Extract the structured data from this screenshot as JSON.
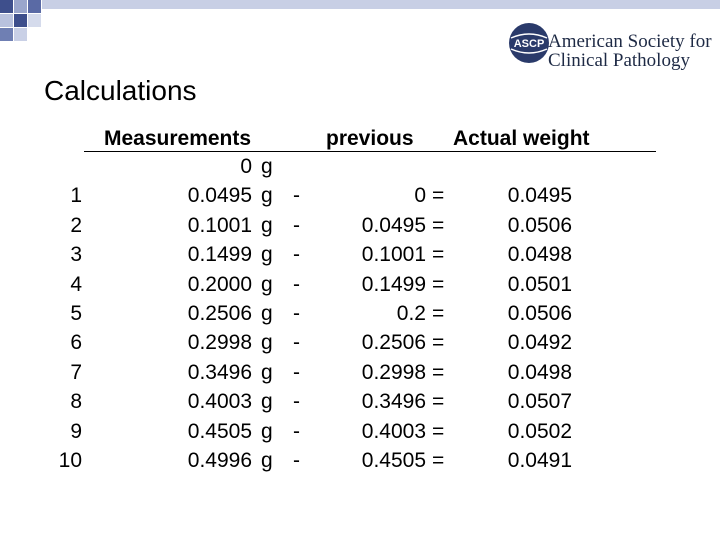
{
  "slide": {
    "title": "Calculations"
  },
  "logo": {
    "mark_text": "ASCP",
    "line1": "American Society for",
    "line2": "Clinical Pathology",
    "brand_color": "#2a3a6a"
  },
  "table": {
    "headers": {
      "measurements": "Measurements",
      "previous": "previous",
      "actual_weight": "Actual weight"
    },
    "zero_row": {
      "value": "0",
      "unit": "g"
    },
    "rows": [
      {
        "n": "1",
        "measurement": "0.0495",
        "unit": "g",
        "minus": "-",
        "previous": "0",
        "equals": "=",
        "actual": "0.0495"
      },
      {
        "n": "2",
        "measurement": "0.1001",
        "unit": "g",
        "minus": "-",
        "previous": "0.0495",
        "equals": "=",
        "actual": "0.0506"
      },
      {
        "n": "3",
        "measurement": "0.1499",
        "unit": "g",
        "minus": "-",
        "previous": "0.1001",
        "equals": "=",
        "actual": "0.0498"
      },
      {
        "n": "4",
        "measurement": "0.2000",
        "unit": "g",
        "minus": "-",
        "previous": "0.1499",
        "equals": "=",
        "actual": "0.0501"
      },
      {
        "n": "5",
        "measurement": "0.2506",
        "unit": "g",
        "minus": "-",
        "previous": "0.2",
        "equals": "=",
        "actual": "0.0506"
      },
      {
        "n": "6",
        "measurement": "0.2998",
        "unit": "g",
        "minus": "-",
        "previous": "0.2506",
        "equals": "=",
        "actual": "0.0492"
      },
      {
        "n": "7",
        "measurement": "0.3496",
        "unit": "g",
        "minus": "-",
        "previous": "0.2998",
        "equals": "=",
        "actual": "0.0498"
      },
      {
        "n": "8",
        "measurement": "0.4003",
        "unit": "g",
        "minus": "-",
        "previous": "0.3496",
        "equals": "=",
        "actual": "0.0507"
      },
      {
        "n": "9",
        "measurement": "0.4505",
        "unit": "g",
        "minus": "-",
        "previous": "0.4003",
        "equals": "=",
        "actual": "0.0502"
      },
      {
        "n": "10",
        "measurement": "0.4996",
        "unit": "g",
        "minus": "-",
        "previous": "0.4505",
        "equals": "=",
        "actual": "0.0491"
      }
    ]
  }
}
